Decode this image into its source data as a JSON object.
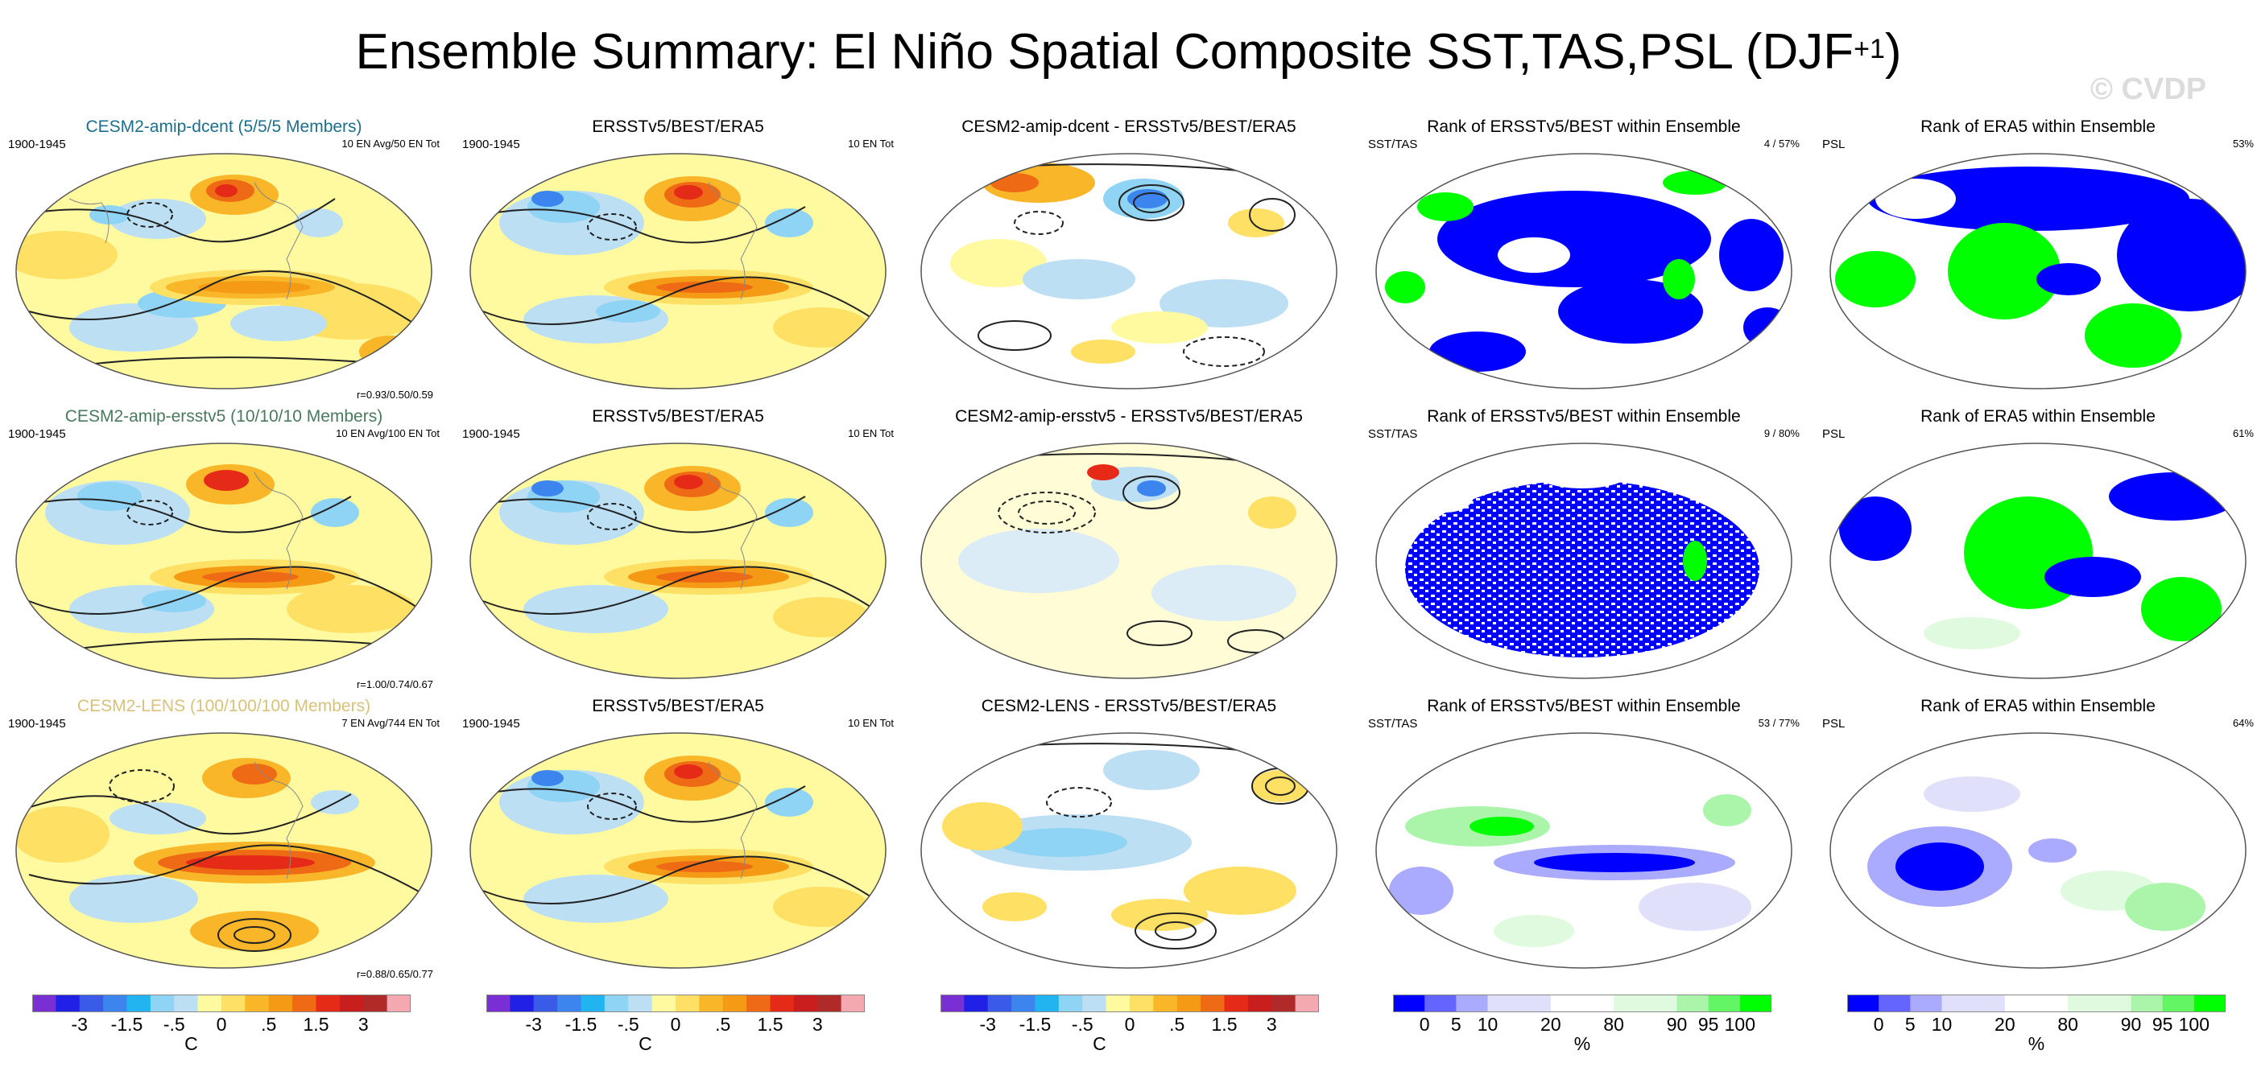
{
  "title": "Ensemble Summary: El Niño Spatial Composite SST,TAS,PSL (DJF",
  "title_sup": "+1",
  "title_close": ")",
  "watermark": "© CVDP",
  "rows": [
    {
      "model_title": "CESM2-amip-dcent (5/5/5 Members)",
      "model_color": "#1c6f8c",
      "model_period": "1900-1945",
      "model_info": "10 EN Avg/50 EN Tot",
      "model_stat": "r=0.93/0.50/0.59",
      "obs_title": "ERSSTv5/BEST/ERA5",
      "obs_period": "1900-1945",
      "obs_info": "10 EN Tot",
      "diff_title": "CESM2-amip-dcent - ERSSTv5/BEST/ERA5",
      "rank1_title": "Rank of ERSSTv5/BEST within Ensemble",
      "rank1_left": "SST/TAS",
      "rank1_right": "4 /  57%",
      "rank2_title": "Rank of ERA5 within Ensemble",
      "rank2_left": "PSL",
      "rank2_right": "53%"
    },
    {
      "model_title": "CESM2-amip-ersstv5 (10/10/10 Members)",
      "model_color": "#4a7a5e",
      "model_period": "1900-1945",
      "model_info": "10 EN Avg/100 EN Tot",
      "model_stat": "r=1.00/0.74/0.67",
      "obs_title": "ERSSTv5/BEST/ERA5",
      "obs_period": "1900-1945",
      "obs_info": "10 EN Tot",
      "diff_title": "CESM2-amip-ersstv5 - ERSSTv5/BEST/ERA5",
      "rank1_title": "Rank of ERSSTv5/BEST within Ensemble",
      "rank1_left": "SST/TAS",
      "rank1_right": "9 /  80%",
      "rank2_title": "Rank of ERA5 within Ensemble",
      "rank2_left": "PSL",
      "rank2_right": "61%"
    },
    {
      "model_title": "CESM2-LENS (100/100/100 Members)",
      "model_color": "#d8c27a",
      "model_period": "1900-1945",
      "model_info": "7 EN Avg/744 EN Tot",
      "model_stat": "r=0.88/0.65/0.77",
      "obs_title": "ERSSTv5/BEST/ERA5",
      "obs_period": "1900-1945",
      "obs_info": "10 EN Tot",
      "diff_title": "CESM2-LENS - ERSSTv5/BEST/ERA5",
      "rank1_title": "Rank of ERSSTv5/BEST within Ensemble",
      "rank1_left": "SST/TAS",
      "rank1_right": "53 /  77%",
      "rank2_title": "Rank of ERA5 within Ensemble",
      "rank2_left": "PSL",
      "rank2_right": "64%"
    }
  ],
  "temp_colorbar": {
    "colors": [
      "#7a2fd4",
      "#2020e6",
      "#3a5ae8",
      "#3c84ee",
      "#22b4f0",
      "#8fd4f4",
      "#bcdff4",
      "#fffaa0",
      "#fde064",
      "#f8b628",
      "#f49a14",
      "#ee6a14",
      "#e62a18",
      "#c81e1e",
      "#b02a2a",
      "#f4a8b0"
    ],
    "labels": [
      "-3",
      "-1.5",
      "-.5",
      "0",
      ".5",
      "1.5",
      "3"
    ],
    "unit": "C"
  },
  "rank_colorbar": {
    "colors": [
      "#0000ff",
      "#6464ff",
      "#aaaaff",
      "#e0e0fa",
      "#e0e0fa",
      "#ffffff",
      "#ffffff",
      "#e0fae0",
      "#e0fae0",
      "#aaf5aa",
      "#64f564",
      "#00ff00"
    ],
    "labels": [
      "0",
      "5",
      "10",
      "20",
      "80",
      "90",
      "95",
      "100"
    ],
    "unit": "%"
  }
}
